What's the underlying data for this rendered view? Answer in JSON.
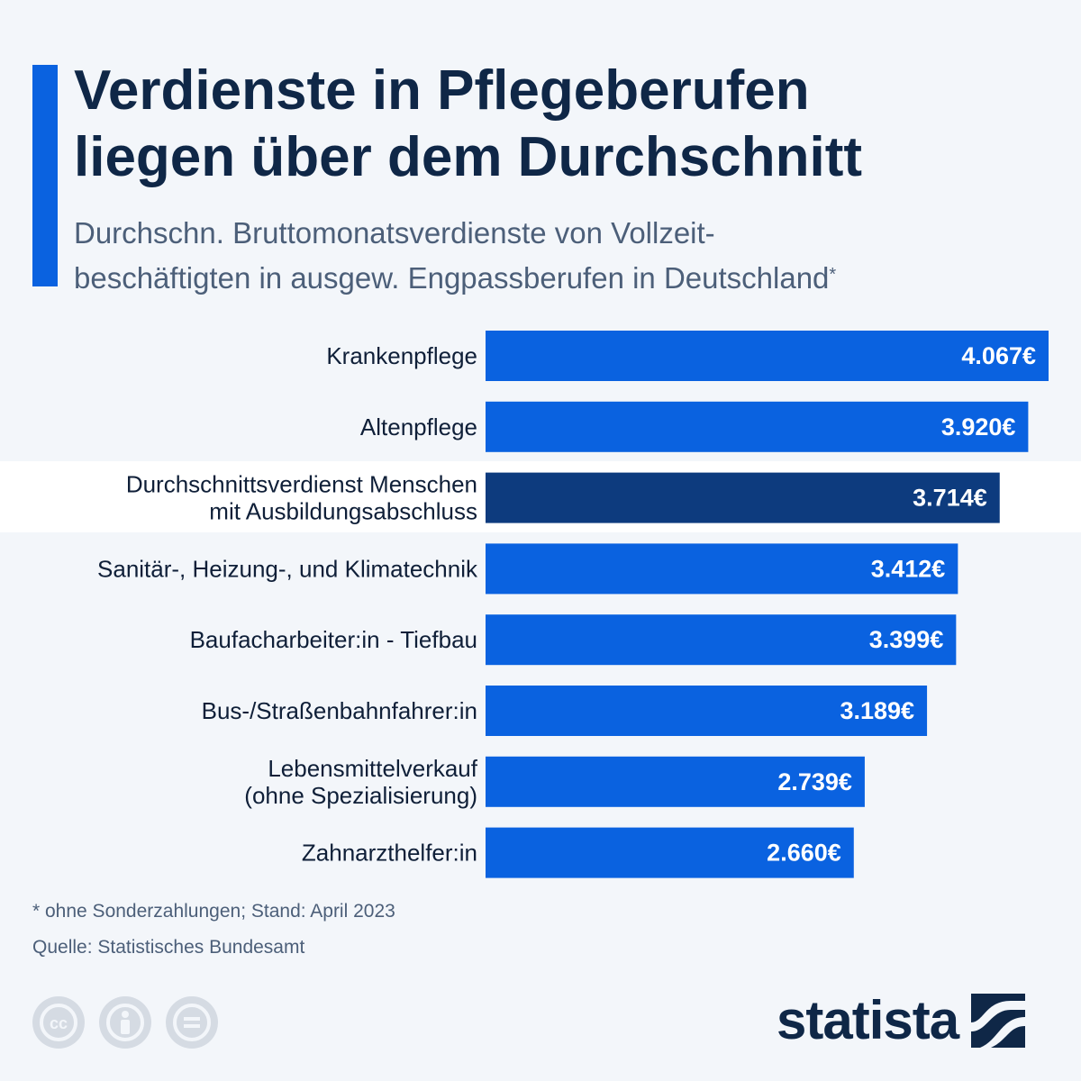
{
  "header": {
    "title": "Verdienste in Pflegeberufen\nliegen über dem Durchschnitt",
    "subtitle": "Durchschn. Bruttomonatsverdienste von Vollzeit-\nbeschäftigten in ausgew. Engpassberufen in Deutschland",
    "subtitle_mark": "*"
  },
  "colors": {
    "accent": "#0a62e0",
    "bar": "#0a62e0",
    "highlight_bar": "#0d3b7e",
    "background": "#f3f6fa",
    "highlight_band": "#ffffff"
  },
  "chart_data": {
    "type": "bar",
    "orientation": "horizontal",
    "categories": [
      "Krankenpflege",
      "Altenpflege",
      "Durchschnittsverdienst Menschen\nmit Ausbildungsabschluss",
      "Sanitär-, Heizung-, und Klimatechnik",
      "Baufacharbeiter:in - Tiefbau",
      "Bus-/Straßenbahnfahrer:in",
      "Lebensmittelverkauf\n(ohne Spezialisierung)",
      "Zahnarzthelfer:in"
    ],
    "values": [
      4067,
      3920,
      3714,
      3412,
      3399,
      3189,
      2739,
      2660
    ],
    "value_labels": [
      "4.067€",
      "3.920€",
      "3.714€",
      "3.412€",
      "3.399€",
      "3.189€",
      "2.739€",
      "2.660€"
    ],
    "highlight_index": 2,
    "unit": "€",
    "xlim": [
      0,
      4067
    ],
    "grid": false
  },
  "footer": {
    "footnote": "* ohne Sonderzahlungen; Stand: April 2023",
    "source": "Quelle: Statistisches Bundesamt",
    "logo_text": "statista",
    "license_icons": [
      "cc-icon",
      "attribution-icon",
      "no-derivatives-icon"
    ]
  }
}
